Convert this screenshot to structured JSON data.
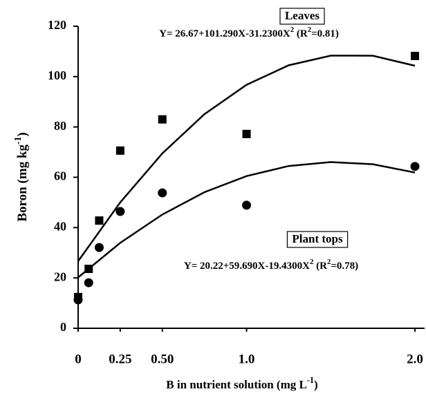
{
  "chart_data": {
    "type": "scatter",
    "x_label": [
      "B in nutrient solution (mg L",
      "-1",
      ")"
    ],
    "y_label": [
      "Boron (mg kg",
      "-1",
      ")"
    ],
    "xlim": [
      0,
      2.0
    ],
    "ylim": [
      0,
      120
    ],
    "xticks": [
      0,
      {
        "value": 0.25,
        "label": "0.25"
      },
      {
        "value": 0.5,
        "label": "0.50"
      },
      {
        "value": 1,
        "label": "1.0"
      },
      {
        "value": 2,
        "label": "2.0"
      }
    ],
    "yticks": [
      0,
      20,
      40,
      60,
      80,
      100,
      120
    ],
    "x": [
      0,
      0.0625,
      0.125,
      0.25,
      0.5,
      1,
      2
    ],
    "fit_x": [
      0,
      0.25,
      0.5,
      0.75,
      1,
      1.25,
      1.5,
      1.75,
      2
    ],
    "series": [
      {
        "name": "Leaves",
        "color": "#000000",
        "marker": "square",
        "values": [
          12.4,
          23.6,
          42.8,
          70.6,
          83,
          77.2,
          108.2
        ],
        "fit": [
          26.67,
          50.04,
          69.51,
          85.07,
          96.73,
          104.48,
          108.34,
          108.29,
          104.33
        ],
        "equation": [
          "Y= 26.67+101.290X-31.2300X",
          "2",
          " (R",
          "2",
          "=0.81)"
        ]
      },
      {
        "name": "Plant tops",
        "color": "#000000",
        "marker": "circle",
        "values": [
          11.3,
          18.1,
          32.1,
          46.4,
          53.8,
          48.9,
          64.3
        ],
        "fit": [
          20.22,
          33.93,
          45.21,
          54.06,
          60.48,
          64.47,
          66.04,
          65.18,
          61.88
        ],
        "equation": [
          "Y= 20.22+59.690X-19.4300X",
          "2",
          " (R",
          "2",
          "=0.78)"
        ]
      }
    ]
  }
}
